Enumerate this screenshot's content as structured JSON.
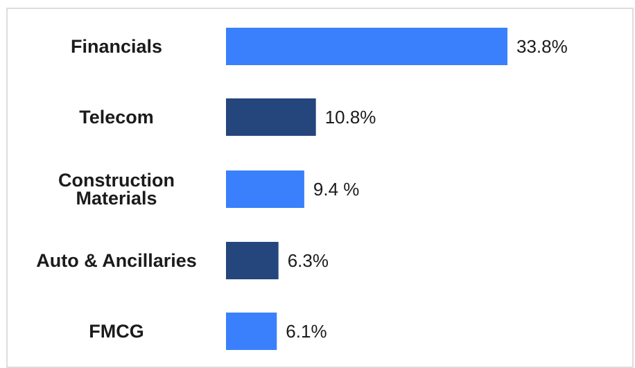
{
  "chart_data": {
    "type": "bar",
    "orientation": "horizontal",
    "categories": [
      "Financials",
      "Telecom",
      "Construction Materials",
      "Auto & Ancillaries",
      "FMCG"
    ],
    "category_lines": [
      [
        "Financials"
      ],
      [
        "Telecom"
      ],
      [
        "Construction",
        "Materials"
      ],
      [
        "Auto & Ancillaries"
      ],
      [
        "FMCG"
      ]
    ],
    "values": [
      33.8,
      10.8,
      9.4,
      6.3,
      6.1
    ],
    "value_labels": [
      "33.8%",
      "10.8%",
      "9.4 %",
      "6.3%",
      "6.1%"
    ],
    "bar_colors": [
      "#3a80fd",
      "#24467d",
      "#3a80fd",
      "#24467d",
      "#3a80fd"
    ],
    "unit": "%",
    "grid": false,
    "legend": "none"
  }
}
